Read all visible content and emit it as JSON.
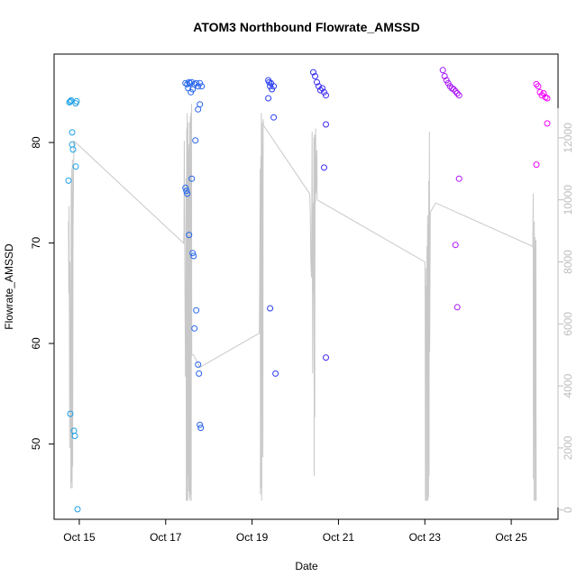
{
  "chart_data": {
    "type": "scatter",
    "title": "ATOM3 Northbound Flowrate_AMSSD",
    "xlabel": "Date",
    "ylabel": "Flowrate_AMSSD",
    "x_ticks": [
      "Oct 15",
      "Oct 17",
      "Oct 19",
      "Oct 21",
      "Oct 23",
      "Oct 25"
    ],
    "y_ticks": [
      "50",
      "60",
      "70",
      "80"
    ],
    "y2_ticks": [
      "0",
      "2000",
      "4000",
      "6000",
      "8000",
      "10000",
      "12000"
    ],
    "xlim": [
      "2023-10-14 10:00",
      "2023-10-26 02:00"
    ],
    "ylim": [
      42.5,
      88.8
    ],
    "y2lim": [
      -300,
      14700
    ],
    "colors": {
      "points_start": "#1aa8e6",
      "points_mid": "#2f2ff0",
      "points_end": "#ff00ff",
      "line": "#c8c8c8"
    },
    "series": [
      {
        "type": "points",
        "axis": "left",
        "values": [
          [
            "2023-10-14 18:00",
            76.2
          ],
          [
            "2023-10-14 18:30",
            84.0
          ],
          [
            "2023-10-14 19:00",
            84.1
          ],
          [
            "2023-10-14 19:30",
            84.2
          ],
          [
            "2023-10-14 20:00",
            81.0
          ],
          [
            "2023-10-14 20:00",
            79.8
          ],
          [
            "2023-10-14 20:30",
            79.3
          ],
          [
            "2023-10-14 19:00",
            53.0
          ],
          [
            "2023-10-14 21:00",
            51.3
          ],
          [
            "2023-10-14 21:30",
            50.8
          ],
          [
            "2023-10-14 22:00",
            77.6
          ],
          [
            "2023-10-14 22:30",
            84.1
          ],
          [
            "2023-10-14 22:00",
            83.9
          ],
          [
            "2023-10-14 23:00",
            43.5
          ],
          [
            "2023-10-17 11:00",
            85.9
          ],
          [
            "2023-10-17 12:00",
            85.8
          ],
          [
            "2023-10-17 12:30",
            85.4
          ],
          [
            "2023-10-17 13:00",
            86.0
          ],
          [
            "2023-10-17 13:30",
            85.9
          ],
          [
            "2023-10-17 14:00",
            85.0
          ],
          [
            "2023-10-17 14:30",
            86.0
          ],
          [
            "2023-10-17 15:00",
            85.3
          ],
          [
            "2023-10-17 16:00",
            85.8
          ],
          [
            "2023-10-17 17:00",
            85.9
          ],
          [
            "2023-10-17 18:00",
            85.6
          ],
          [
            "2023-10-17 19:00",
            85.9
          ],
          [
            "2023-10-17 20:00",
            85.6
          ],
          [
            "2023-10-17 11:00",
            75.5
          ],
          [
            "2023-10-17 11:30",
            75.2
          ],
          [
            "2023-10-17 12:00",
            74.9
          ],
          [
            "2023-10-17 13:00",
            70.8
          ],
          [
            "2023-10-17 14:30",
            76.4
          ],
          [
            "2023-10-17 15:00",
            69.0
          ],
          [
            "2023-10-17 15:30",
            68.7
          ],
          [
            "2023-10-17 16:30",
            80.2
          ],
          [
            "2023-10-17 17:00",
            63.3
          ],
          [
            "2023-10-17 16:00",
            61.5
          ],
          [
            "2023-10-17 18:00",
            57.9
          ],
          [
            "2023-10-17 18:30",
            57.0
          ],
          [
            "2023-10-17 18:00",
            83.3
          ],
          [
            "2023-10-17 19:00",
            83.8
          ],
          [
            "2023-10-17 19:00",
            51.9
          ],
          [
            "2023-10-17 19:30",
            51.6
          ],
          [
            "2023-10-19 09:00",
            86.2
          ],
          [
            "2023-10-19 09:30",
            86.0
          ],
          [
            "2023-10-19 10:00",
            85.6
          ],
          [
            "2023-10-19 10:30",
            85.9
          ],
          [
            "2023-10-19 11:00",
            85.3
          ],
          [
            "2023-10-19 12:00",
            85.6
          ],
          [
            "2023-10-19 09:00",
            84.4
          ],
          [
            "2023-10-19 10:00",
            63.5
          ],
          [
            "2023-10-19 12:00",
            82.5
          ],
          [
            "2023-10-19 13:00",
            57.0
          ],
          [
            "2023-10-20 10:00",
            87.0
          ],
          [
            "2023-10-20 11:00",
            86.6
          ],
          [
            "2023-10-20 12:00",
            86.0
          ],
          [
            "2023-10-20 13:00",
            85.6
          ],
          [
            "2023-10-20 14:00",
            85.2
          ],
          [
            "2023-10-20 15:00",
            85.4
          ],
          [
            "2023-10-20 16:00",
            85.0
          ],
          [
            "2023-10-20 17:00",
            84.7
          ],
          [
            "2023-10-20 16:00",
            77.5
          ],
          [
            "2023-10-20 17:00",
            81.8
          ],
          [
            "2023-10-20 17:00",
            58.6
          ],
          [
            "2023-10-23 10:00",
            87.2
          ],
          [
            "2023-10-23 11:00",
            86.6
          ],
          [
            "2023-10-23 12:00",
            86.2
          ],
          [
            "2023-10-23 13:00",
            85.9
          ],
          [
            "2023-10-23 14:00",
            85.6
          ],
          [
            "2023-10-23 15:00",
            85.4
          ],
          [
            "2023-10-23 16:00",
            85.3
          ],
          [
            "2023-10-23 17:00",
            85.1
          ],
          [
            "2023-10-23 18:00",
            84.9
          ],
          [
            "2023-10-23 19:00",
            84.7
          ],
          [
            "2023-10-23 17:00",
            69.8
          ],
          [
            "2023-10-23 18:00",
            63.6
          ],
          [
            "2023-10-23 19:00",
            76.4
          ],
          [
            "2023-10-25 14:00",
            85.8
          ],
          [
            "2023-10-25 15:00",
            85.6
          ],
          [
            "2023-10-25 16:00",
            85.0
          ],
          [
            "2023-10-25 17:00",
            84.7
          ],
          [
            "2023-10-25 18:00",
            84.9
          ],
          [
            "2023-10-25 19:00",
            84.5
          ],
          [
            "2023-10-25 20:00",
            84.4
          ],
          [
            "2023-10-25 14:00",
            77.8
          ],
          [
            "2023-10-25 20:00",
            81.9
          ]
        ]
      },
      {
        "type": "line",
        "axis": "right",
        "values": [
          [
            "2023-10-14 18:00",
            9300
          ],
          [
            "2023-10-14 18:10",
            7000
          ],
          [
            "2023-10-14 18:20",
            9800
          ],
          [
            "2023-10-14 18:30",
            6000
          ],
          [
            "2023-10-14 18:40",
            2000
          ],
          [
            "2023-10-14 18:50",
            8000
          ],
          [
            "2023-10-14 19:00",
            3600
          ],
          [
            "2023-10-14 19:10",
            6500
          ],
          [
            "2023-10-14 19:20",
            700
          ],
          [
            "2023-10-14 19:30",
            10500
          ],
          [
            "2023-10-14 19:40",
            900
          ],
          [
            "2023-10-14 19:50",
            11000
          ],
          [
            "2023-10-14 20:00",
            700
          ],
          [
            "2023-10-14 20:10",
            11300
          ],
          [
            "2023-10-14 20:20",
            1400
          ],
          [
            "2023-10-14 20:30",
            9000
          ],
          [
            "2023-10-14 21:00",
            11900
          ],
          [
            "2023-10-17 10:00",
            8600
          ],
          [
            "2023-10-17 10:10",
            9000
          ],
          [
            "2023-10-17 10:20",
            11900
          ],
          [
            "2023-10-17 10:30",
            9500
          ],
          [
            "2023-10-17 11:00",
            4300
          ],
          [
            "2023-10-17 11:10",
            6000
          ],
          [
            "2023-10-17 11:20",
            10700
          ],
          [
            "2023-10-17 11:30",
            300
          ],
          [
            "2023-10-17 11:40",
            12300
          ],
          [
            "2023-10-17 11:50",
            300
          ],
          [
            "2023-10-17 12:00",
            12800
          ],
          [
            "2023-10-17 12:10",
            300
          ],
          [
            "2023-10-17 12:20",
            12500
          ],
          [
            "2023-10-17 12:30",
            1100
          ],
          [
            "2023-10-17 12:40",
            11600
          ],
          [
            "2023-10-17 12:50",
            600
          ],
          [
            "2023-10-17 13:00",
            11800
          ],
          [
            "2023-10-17 13:10",
            400
          ],
          [
            "2023-10-17 13:20",
            12500
          ],
          [
            "2023-10-17 13:30",
            300
          ],
          [
            "2023-10-17 13:40",
            12700
          ],
          [
            "2023-10-17 13:50",
            500
          ],
          [
            "2023-10-17 14:00",
            12800
          ],
          [
            "2023-10-17 14:10",
            300
          ],
          [
            "2023-10-17 14:20",
            13100
          ],
          [
            "2023-10-17 14:30",
            5000
          ],
          [
            "2023-10-17 15:30",
            5000
          ],
          [
            "2023-10-17 19:00",
            4600
          ],
          [
            "2023-10-19 04:00",
            5700
          ],
          [
            "2023-10-19 04:10",
            6600
          ],
          [
            "2023-10-19 04:20",
            9000
          ],
          [
            "2023-10-19 04:30",
            11000
          ],
          [
            "2023-10-19 04:40",
            500
          ],
          [
            "2023-10-19 04:50",
            11400
          ],
          [
            "2023-10-19 05:00",
            700
          ],
          [
            "2023-10-19 05:10",
            12800
          ],
          [
            "2023-10-19 05:20",
            300
          ],
          [
            "2023-10-19 05:30",
            12500
          ],
          [
            "2023-10-19 05:40",
            11500
          ],
          [
            "2023-10-19 06:00",
            1700
          ],
          [
            "2023-10-19 06:10",
            12600
          ],
          [
            "2023-10-19 06:20",
            12400
          ],
          [
            "2023-10-20 08:00",
            10200
          ],
          [
            "2023-10-20 08:20",
            9500
          ],
          [
            "2023-10-20 08:40",
            8000
          ],
          [
            "2023-10-20 09:00",
            7500
          ],
          [
            "2023-10-20 09:20",
            12200
          ],
          [
            "2023-10-20 09:40",
            4400
          ],
          [
            "2023-10-20 10:00",
            9900
          ],
          [
            "2023-10-20 10:10",
            7000
          ],
          [
            "2023-10-20 10:20",
            12000
          ],
          [
            "2023-10-20 10:30",
            1100
          ],
          [
            "2023-10-20 10:40",
            12100
          ],
          [
            "2023-10-20 10:50",
            3000
          ],
          [
            "2023-10-20 11:00",
            12100
          ],
          [
            "2023-10-20 11:10",
            9900
          ],
          [
            "2023-10-20 11:20",
            12300
          ],
          [
            "2023-10-20 11:30",
            10200
          ],
          [
            "2023-10-20 12:00",
            11600
          ],
          [
            "2023-10-20 12:10",
            10000
          ],
          [
            "2023-10-23 00:00",
            8000
          ],
          [
            "2023-10-23 00:10",
            7000
          ],
          [
            "2023-10-23 00:20",
            300
          ],
          [
            "2023-10-23 00:30",
            7200
          ],
          [
            "2023-10-23 00:40",
            300
          ],
          [
            "2023-10-23 00:50",
            7800
          ],
          [
            "2023-10-23 01:00",
            300
          ],
          [
            "2023-10-23 01:10",
            8500
          ],
          [
            "2023-10-23 01:20",
            5500
          ],
          [
            "2023-10-23 01:30",
            9500
          ],
          [
            "2023-10-23 01:40",
            300
          ],
          [
            "2023-10-23 01:50",
            9200
          ],
          [
            "2023-10-23 02:00",
            400
          ],
          [
            "2023-10-23 02:10",
            10600
          ],
          [
            "2023-10-23 02:20",
            1100
          ],
          [
            "2023-10-23 02:30",
            12200
          ],
          [
            "2023-10-23 02:40",
            5100
          ],
          [
            "2023-10-23 03:00",
            9600
          ],
          [
            "2023-10-23 05:00",
            9800
          ],
          [
            "2023-10-23 06:00",
            9900
          ],
          [
            "2023-10-25 12:00",
            8500
          ],
          [
            "2023-10-25 12:10",
            10200
          ],
          [
            "2023-10-25 12:20",
            1000
          ],
          [
            "2023-10-25 12:30",
            8500
          ],
          [
            "2023-10-25 12:40",
            300
          ],
          [
            "2023-10-25 12:50",
            9300
          ],
          [
            "2023-10-25 13:00",
            2000
          ],
          [
            "2023-10-25 13:10",
            8800
          ],
          [
            "2023-10-25 13:20",
            300
          ],
          [
            "2023-10-25 13:30",
            6300
          ],
          [
            "2023-10-25 13:40",
            8700
          ],
          [
            "2023-10-25 13:50",
            300
          ]
        ]
      }
    ]
  }
}
